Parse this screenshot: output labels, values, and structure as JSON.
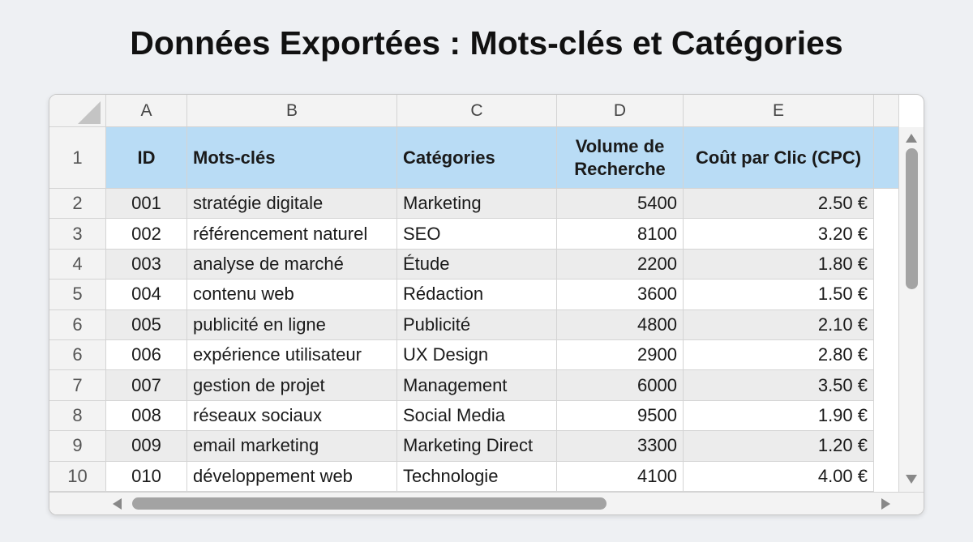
{
  "title": "Données Exportées : Mots-clés et Catégories",
  "columns": [
    "A",
    "B",
    "C",
    "D",
    "E"
  ],
  "row_numbers": [
    "1",
    "2",
    "3",
    "4",
    "5",
    "6",
    "6",
    "7",
    "8",
    "9",
    "10"
  ],
  "header": [
    "ID",
    "Mots-clés",
    "Catégories",
    "Volume de Recherche",
    "Coût par Clic (CPC)"
  ],
  "rows": [
    [
      "001",
      "stratégie digitale",
      "Marketing",
      "5400",
      "2.50 €"
    ],
    [
      "002",
      "référencement naturel",
      "SEO",
      "8100",
      "3.20 €"
    ],
    [
      "003",
      "analyse de marché",
      "Étude",
      "2200",
      "1.80 €"
    ],
    [
      "004",
      "contenu web",
      "Rédaction",
      "3600",
      "1.50 €"
    ],
    [
      "005",
      "publicité en ligne",
      "Publicité",
      "4800",
      "2.10 €"
    ],
    [
      "006",
      "expérience utilisateur",
      "UX Design",
      "2900",
      "2.80 €"
    ],
    [
      "007",
      "gestion de projet",
      "Management",
      "6000",
      "3.50 €"
    ],
    [
      "008",
      "réseaux sociaux",
      "Social Media",
      "9500",
      "1.90 €"
    ],
    [
      "009",
      "email marketing",
      "Marketing Direct",
      "3300",
      "1.20 €"
    ],
    [
      "010",
      "développement web",
      "Technologie",
      "4100",
      "4.00 €"
    ]
  ]
}
